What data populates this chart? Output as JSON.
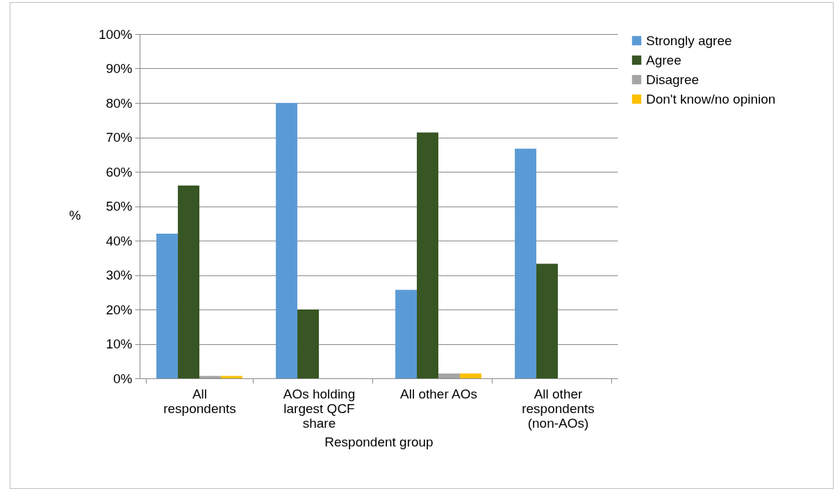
{
  "chart_data": {
    "type": "bar",
    "xlabel": "Respondent group",
    "ylabel": "%",
    "categories": [
      "All respondents",
      "AOs holding largest QCF share",
      "All other AOs",
      "All other respondents (non-AOs)"
    ],
    "series": [
      {
        "name": "Strongly agree",
        "color": "#5b9bd5",
        "values": [
          42,
          80,
          25.7,
          66.7
        ]
      },
      {
        "name": "Agree",
        "color": "#375623",
        "values": [
          56,
          20,
          71.4,
          33.3
        ]
      },
      {
        "name": "Disagree",
        "color": "#a5a5a5",
        "values": [
          0.7,
          0,
          1.4,
          0
        ]
      },
      {
        "name": "Don't know/no opinion",
        "color": "#ffc000",
        "values": [
          0.7,
          0,
          1.4,
          0
        ]
      }
    ],
    "ylim": [
      0,
      100
    ],
    "yticks": [
      {
        "value": 0,
        "label": "0%"
      },
      {
        "value": 10,
        "label": "10%"
      },
      {
        "value": 20,
        "label": "20%"
      },
      {
        "value": 30,
        "label": "30%"
      },
      {
        "value": 40,
        "label": "40%"
      },
      {
        "value": 50,
        "label": "50%"
      },
      {
        "value": 60,
        "label": "60%"
      },
      {
        "value": 70,
        "label": "70%"
      },
      {
        "value": 80,
        "label": "80%"
      },
      {
        "value": 90,
        "label": "90%"
      },
      {
        "value": 100,
        "label": "100%"
      }
    ],
    "grid": "y",
    "legend": "right"
  }
}
